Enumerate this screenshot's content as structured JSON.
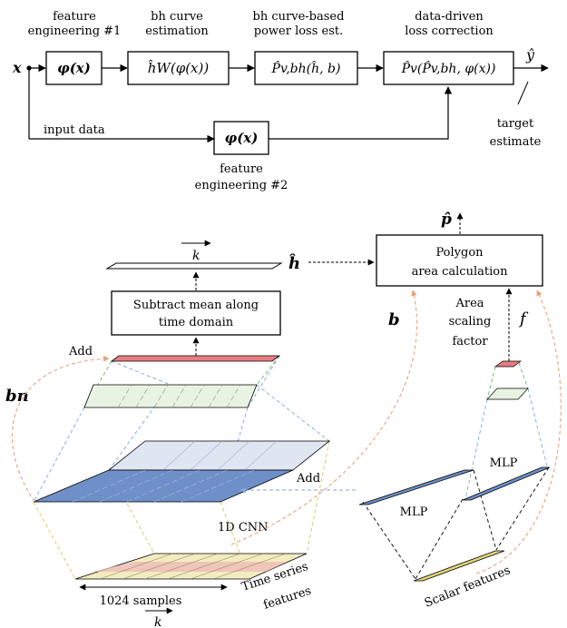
{
  "top": {
    "input_var": "x",
    "output_var": "ŷ",
    "block1": {
      "caption_l1": "feature",
      "caption_l2": "engineering #1",
      "math": "φ(x)"
    },
    "block2": {
      "caption_l1": "bh curve",
      "caption_l2": "estimation",
      "math": "ĥW(φ(x))"
    },
    "block3": {
      "caption_l1": "bh curve-based",
      "caption_l2": "power loss est.",
      "math": "P̂v,bh(ĥ, b)"
    },
    "block4": {
      "caption_l1": "data-driven",
      "caption_l2": "loss correction",
      "math": "P̂v(P̂v,bh, φ(x))"
    },
    "block5": {
      "caption_l1": "feature",
      "caption_l2": "engineering #2",
      "math": "φ(x)"
    },
    "input_data_label": "input data",
    "target_l1": "target",
    "target_l2": "estimate"
  },
  "bottom": {
    "p_hat": "p̂",
    "h_hat": "ĥ",
    "b": "b",
    "b_n": "bn",
    "f": "f",
    "k_top": "k",
    "k_bottom": "k",
    "polygon_l1": "Polygon",
    "polygon_l2": "area calculation",
    "subtract_l1": "Subtract mean along",
    "subtract_l2": "time domain",
    "area_l1": "Area",
    "area_l2": "scaling",
    "area_l3": "factor",
    "add_top": "Add",
    "add_mid": "Add",
    "cnn": "1D CNN",
    "mlp_left": "MLP",
    "mlp_right": "MLP",
    "time_series_l1": "Time series",
    "time_series_l2": "features",
    "scalar_features": "Scalar features",
    "samples": "1024 samples"
  },
  "colors": {
    "red_plane": "#e87c82",
    "blue_plane": "#6e8fc7",
    "light_blue": "#dfe6f2",
    "light_green": "#e9f3e4",
    "yellow_plane": "#e2d77a",
    "orange_dash": "#e8a37f",
    "blue_dash": "#7fa6dc",
    "green_dash": "#6ab46a",
    "yellow_dash": "#d4c85a"
  }
}
